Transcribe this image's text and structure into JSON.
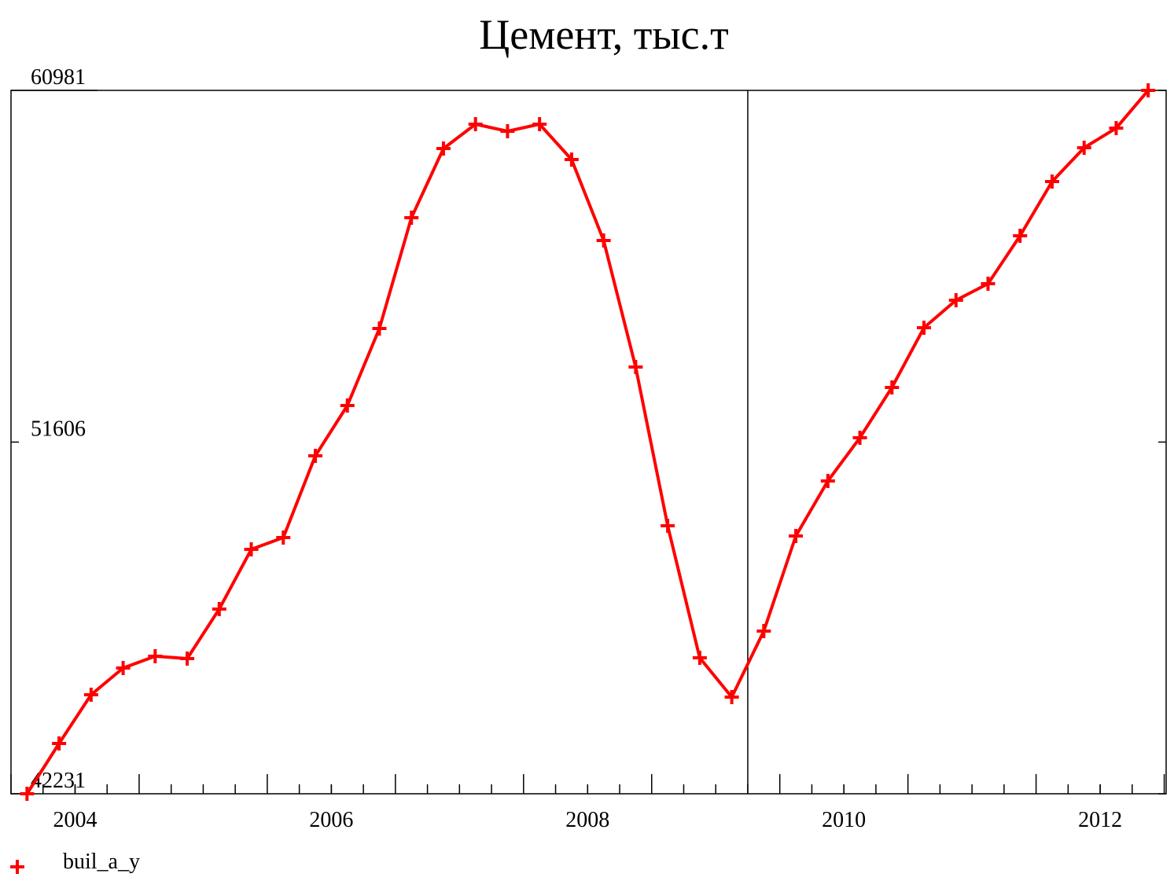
{
  "chart_data": {
    "type": "line",
    "title": "Цемент, тыс.т",
    "x": [
      2003.625,
      2003.875,
      2004.125,
      2004.375,
      2004.625,
      2004.875,
      2005.125,
      2005.375,
      2005.625,
      2005.875,
      2006.125,
      2006.375,
      2006.625,
      2006.875,
      2007.125,
      2007.375,
      2007.625,
      2007.875,
      2008.125,
      2008.375,
      2008.625,
      2008.875,
      2009.125,
      2009.375,
      2009.625,
      2009.875,
      2010.125,
      2010.375,
      2010.625,
      2010.875,
      2011.125,
      2011.375,
      2011.625,
      2011.875,
      2012.125,
      2012.375
    ],
    "series": [
      {
        "name": "buil_a_y",
        "color": "#ff0000",
        "values": [
          42231,
          43572,
          44871,
          45583,
          45897,
          45834,
          47154,
          48746,
          49061,
          51239,
          52580,
          54634,
          57587,
          59431,
          60080,
          59892,
          60080,
          59138,
          56980,
          53607,
          49375,
          45855,
          44808,
          46568,
          49103,
          50569,
          51721,
          53062,
          54654,
          55387,
          55827,
          57105,
          58551,
          59452,
          59975,
          60981
        ]
      }
    ],
    "xlim": [
      2003.5,
      2012.515
    ],
    "xticks": [
      2004,
      2006,
      2008,
      2010,
      2012
    ],
    "ylim": [
      42231,
      60981
    ],
    "yticks": [
      42231,
      51606,
      60981
    ],
    "vline": 2009.25
  }
}
